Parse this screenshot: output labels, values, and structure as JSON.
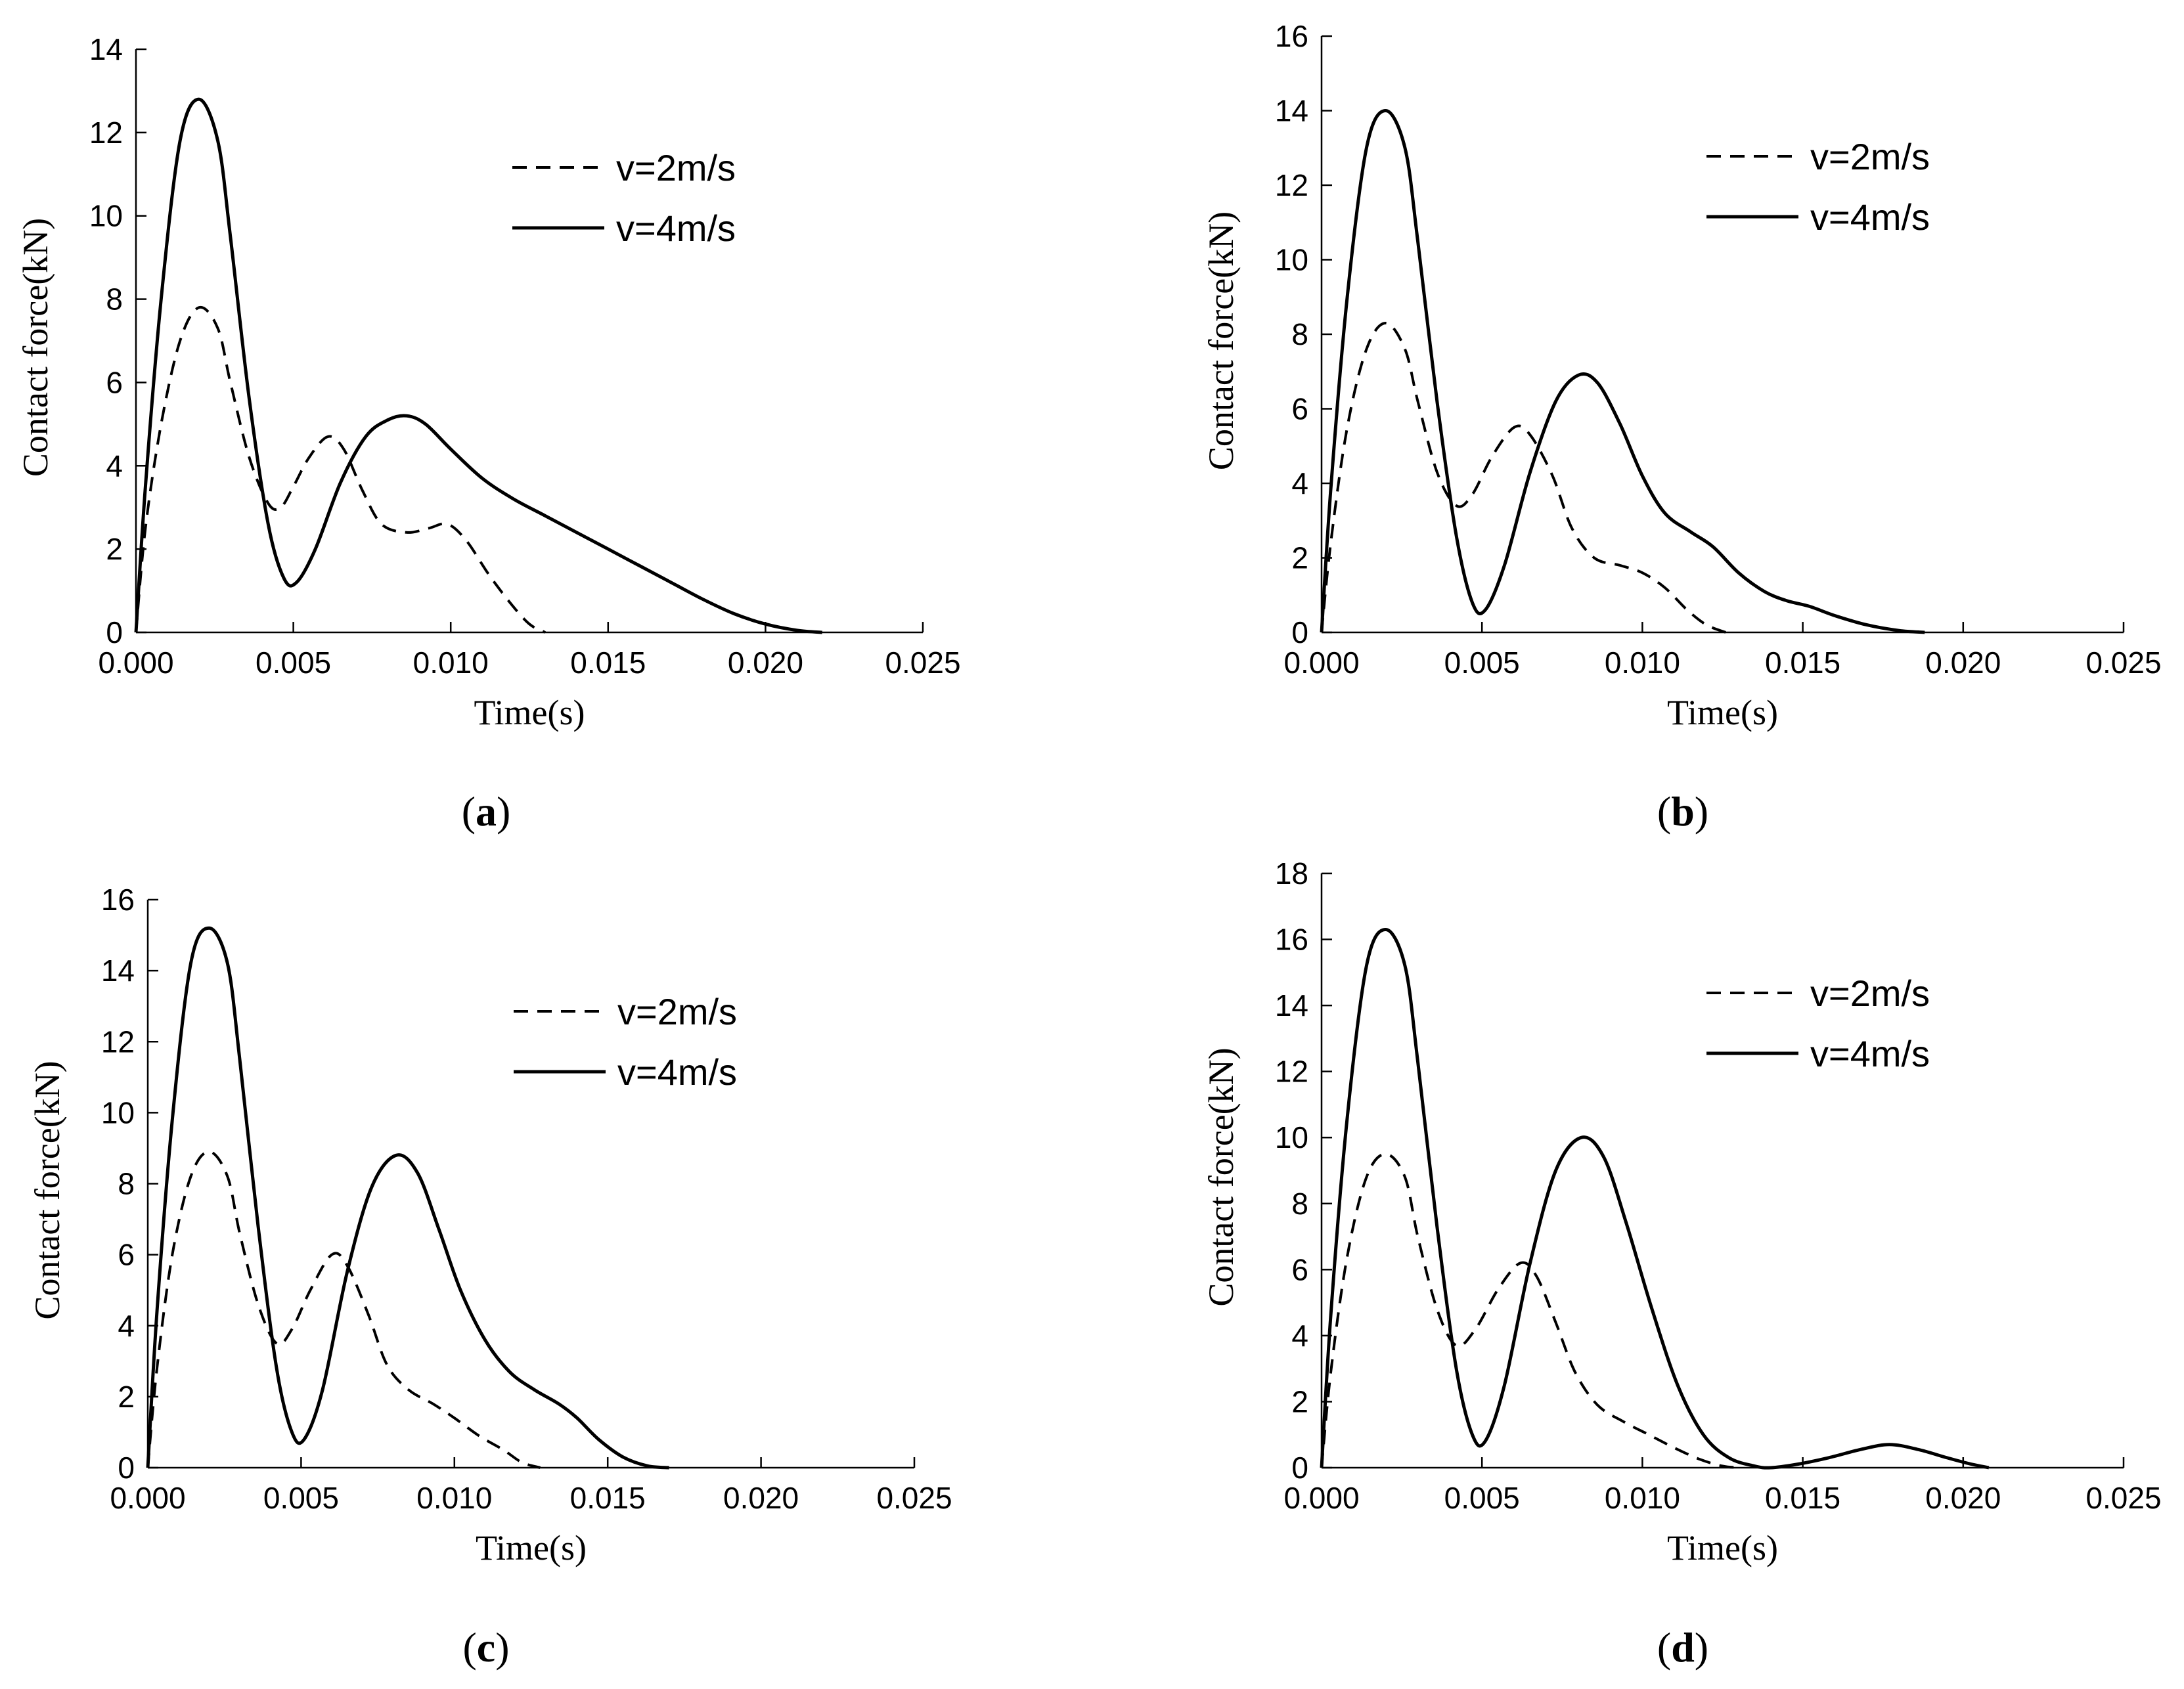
{
  "chart_data": [
    {
      "panel": "a",
      "type": "line",
      "xlabel": "Time(s)",
      "ylabel": "Contact force(kN)",
      "xlim": [
        0,
        0.025
      ],
      "ylim": [
        0,
        14
      ],
      "xticks": [
        0.0,
        0.005,
        0.01,
        0.015,
        0.02,
        0.025
      ],
      "xtick_labels": [
        "0.000",
        "0.005",
        "0.010",
        "0.015",
        "0.020",
        "0.025"
      ],
      "yticks": [
        0,
        2,
        4,
        6,
        8,
        10,
        12,
        14
      ],
      "ytick_labels": [
        "0",
        "2",
        "4",
        "6",
        "8",
        "10",
        "12",
        "14"
      ],
      "legend_position": "top-right",
      "series": [
        {
          "name": "v=2m/s",
          "style": "dashed",
          "points": [
            [
              0,
              0
            ],
            [
              0.0003,
              2.5
            ],
            [
              0.0008,
              5.0
            ],
            [
              0.0014,
              7.0
            ],
            [
              0.002,
              7.8
            ],
            [
              0.0026,
              7.3
            ],
            [
              0.003,
              6.0
            ],
            [
              0.0036,
              4.2
            ],
            [
              0.0042,
              3.1
            ],
            [
              0.0046,
              3.0
            ],
            [
              0.005,
              3.5
            ],
            [
              0.0055,
              4.2
            ],
            [
              0.0061,
              4.7
            ],
            [
              0.0066,
              4.4
            ],
            [
              0.0072,
              3.4
            ],
            [
              0.0078,
              2.6
            ],
            [
              0.0086,
              2.4
            ],
            [
              0.0093,
              2.5
            ],
            [
              0.0099,
              2.6
            ],
            [
              0.0105,
              2.2
            ],
            [
              0.0112,
              1.4
            ],
            [
              0.0119,
              0.7
            ],
            [
              0.0125,
              0.2
            ],
            [
              0.013,
              0.0
            ]
          ]
        },
        {
          "name": "v=4m/s",
          "style": "solid",
          "points": [
            [
              0,
              0
            ],
            [
              0.0003,
              3.5
            ],
            [
              0.0008,
              8.0
            ],
            [
              0.0014,
              11.8
            ],
            [
              0.002,
              12.8
            ],
            [
              0.0026,
              11.8
            ],
            [
              0.003,
              9.5
            ],
            [
              0.0036,
              5.6
            ],
            [
              0.0042,
              2.6
            ],
            [
              0.0047,
              1.3
            ],
            [
              0.0051,
              1.2
            ],
            [
              0.0057,
              2.0
            ],
            [
              0.0065,
              3.6
            ],
            [
              0.0073,
              4.7
            ],
            [
              0.008,
              5.1
            ],
            [
              0.0086,
              5.2
            ],
            [
              0.0092,
              5.0
            ],
            [
              0.01,
              4.4
            ],
            [
              0.011,
              3.7
            ],
            [
              0.012,
              3.2
            ],
            [
              0.013,
              2.8
            ],
            [
              0.014,
              2.4
            ],
            [
              0.015,
              2.0
            ],
            [
              0.016,
              1.6
            ],
            [
              0.017,
              1.2
            ],
            [
              0.018,
              0.8
            ],
            [
              0.019,
              0.45
            ],
            [
              0.02,
              0.2
            ],
            [
              0.021,
              0.05
            ],
            [
              0.0218,
              0.0
            ]
          ]
        }
      ]
    },
    {
      "panel": "b",
      "type": "line",
      "xlabel": "Time(s)",
      "ylabel": "Contact force(kN)",
      "xlim": [
        0,
        0.025
      ],
      "ylim": [
        0,
        16
      ],
      "xticks": [
        0.0,
        0.005,
        0.01,
        0.015,
        0.02,
        0.025
      ],
      "xtick_labels": [
        "0.000",
        "0.005",
        "0.010",
        "0.015",
        "0.020",
        "0.025"
      ],
      "yticks": [
        0,
        2,
        4,
        6,
        8,
        10,
        12,
        14,
        16
      ],
      "ytick_labels": [
        "0",
        "2",
        "4",
        "6",
        "8",
        "10",
        "12",
        "14",
        "16"
      ],
      "legend_position": "top-right",
      "series": [
        {
          "name": "v=2m/s",
          "style": "dashed",
          "points": [
            [
              0,
              0
            ],
            [
              0.0003,
              2.5
            ],
            [
              0.0008,
              5.5
            ],
            [
              0.0014,
              7.6
            ],
            [
              0.002,
              8.3
            ],
            [
              0.0026,
              7.6
            ],
            [
              0.003,
              6.2
            ],
            [
              0.0036,
              4.3
            ],
            [
              0.0042,
              3.4
            ],
            [
              0.0047,
              3.7
            ],
            [
              0.0053,
              4.7
            ],
            [
              0.006,
              5.5
            ],
            [
              0.0065,
              5.3
            ],
            [
              0.0072,
              4.2
            ],
            [
              0.0078,
              2.8
            ],
            [
              0.0085,
              2.0
            ],
            [
              0.0093,
              1.8
            ],
            [
              0.01,
              1.6
            ],
            [
              0.0107,
              1.2
            ],
            [
              0.0114,
              0.6
            ],
            [
              0.012,
              0.2
            ],
            [
              0.0126,
              0.0
            ]
          ]
        },
        {
          "name": "v=4m/s",
          "style": "solid",
          "points": [
            [
              0,
              0
            ],
            [
              0.0003,
              4.0
            ],
            [
              0.0008,
              9.0
            ],
            [
              0.0014,
              13.0
            ],
            [
              0.002,
              14.0
            ],
            [
              0.0026,
              13.0
            ],
            [
              0.003,
              10.5
            ],
            [
              0.0036,
              6.2
            ],
            [
              0.0042,
              2.6
            ],
            [
              0.0047,
              0.8
            ],
            [
              0.0051,
              0.6
            ],
            [
              0.0057,
              1.8
            ],
            [
              0.0065,
              4.3
            ],
            [
              0.0073,
              6.2
            ],
            [
              0.008,
              6.9
            ],
            [
              0.0086,
              6.7
            ],
            [
              0.0093,
              5.6
            ],
            [
              0.01,
              4.2
            ],
            [
              0.0107,
              3.2
            ],
            [
              0.0115,
              2.7
            ],
            [
              0.0122,
              2.3
            ],
            [
              0.013,
              1.6
            ],
            [
              0.0138,
              1.1
            ],
            [
              0.0145,
              0.85
            ],
            [
              0.0152,
              0.7
            ],
            [
              0.016,
              0.45
            ],
            [
              0.017,
              0.2
            ],
            [
              0.018,
              0.05
            ],
            [
              0.0188,
              0.0
            ]
          ]
        }
      ]
    },
    {
      "panel": "c",
      "type": "line",
      "xlabel": "Time(s)",
      "ylabel": "Contact force(kN)",
      "xlim": [
        0,
        0.025
      ],
      "ylim": [
        0,
        16
      ],
      "xticks": [
        0.0,
        0.005,
        0.01,
        0.015,
        0.02,
        0.025
      ],
      "xtick_labels": [
        "0.000",
        "0.005",
        "0.010",
        "0.015",
        "0.020",
        "0.025"
      ],
      "yticks": [
        0,
        2,
        4,
        6,
        8,
        10,
        12,
        14,
        16
      ],
      "ytick_labels": [
        "0",
        "2",
        "4",
        "6",
        "8",
        "10",
        "12",
        "14",
        "16"
      ],
      "legend_position": "top-right",
      "series": [
        {
          "name": "v=2m/s",
          "style": "dashed",
          "points": [
            [
              0,
              0
            ],
            [
              0.0003,
              2.8
            ],
            [
              0.0008,
              6.0
            ],
            [
              0.0014,
              8.2
            ],
            [
              0.002,
              8.9
            ],
            [
              0.0026,
              8.2
            ],
            [
              0.003,
              6.6
            ],
            [
              0.0036,
              4.6
            ],
            [
              0.0042,
              3.5
            ],
            [
              0.0047,
              3.9
            ],
            [
              0.0053,
              5.0
            ],
            [
              0.006,
              6.0
            ],
            [
              0.0065,
              5.7
            ],
            [
              0.0072,
              4.3
            ],
            [
              0.0078,
              2.9
            ],
            [
              0.0085,
              2.2
            ],
            [
              0.0093,
              1.8
            ],
            [
              0.01,
              1.4
            ],
            [
              0.0108,
              0.9
            ],
            [
              0.0116,
              0.5
            ],
            [
              0.0122,
              0.15
            ],
            [
              0.0128,
              0.0
            ]
          ]
        },
        {
          "name": "v=4m/s",
          "style": "solid",
          "points": [
            [
              0,
              0
            ],
            [
              0.0003,
              4.4
            ],
            [
              0.0008,
              9.8
            ],
            [
              0.0014,
              14.2
            ],
            [
              0.002,
              15.2
            ],
            [
              0.0026,
              14.2
            ],
            [
              0.003,
              11.5
            ],
            [
              0.0036,
              6.8
            ],
            [
              0.0042,
              2.8
            ],
            [
              0.0047,
              1.0
            ],
            [
              0.0051,
              0.8
            ],
            [
              0.0057,
              2.2
            ],
            [
              0.0065,
              5.5
            ],
            [
              0.0073,
              7.9
            ],
            [
              0.0081,
              8.8
            ],
            [
              0.0088,
              8.3
            ],
            [
              0.0095,
              6.7
            ],
            [
              0.0102,
              5.0
            ],
            [
              0.011,
              3.6
            ],
            [
              0.0118,
              2.7
            ],
            [
              0.0126,
              2.2
            ],
            [
              0.0134,
              1.8
            ],
            [
              0.014,
              1.4
            ],
            [
              0.0147,
              0.8
            ],
            [
              0.0155,
              0.3
            ],
            [
              0.0163,
              0.05
            ],
            [
              0.017,
              0.0
            ]
          ]
        }
      ]
    },
    {
      "panel": "d",
      "type": "line",
      "xlabel": "Time(s)",
      "ylabel": "Contact force(kN)",
      "xlim": [
        0,
        0.025
      ],
      "ylim": [
        0,
        18
      ],
      "xticks": [
        0.0,
        0.005,
        0.01,
        0.015,
        0.02,
        0.025
      ],
      "xtick_labels": [
        "0.000",
        "0.005",
        "0.010",
        "0.015",
        "0.020",
        "0.025"
      ],
      "yticks": [
        0,
        2,
        4,
        6,
        8,
        10,
        12,
        14,
        16,
        18
      ],
      "ytick_labels": [
        "0",
        "2",
        "4",
        "6",
        "8",
        "10",
        "12",
        "14",
        "16",
        "18"
      ],
      "legend_position": "top-right",
      "series": [
        {
          "name": "v=2m/s",
          "style": "dashed",
          "points": [
            [
              0,
              0
            ],
            [
              0.0003,
              3.0
            ],
            [
              0.0008,
              6.4
            ],
            [
              0.0014,
              8.8
            ],
            [
              0.002,
              9.5
            ],
            [
              0.0026,
              8.8
            ],
            [
              0.003,
              7.0
            ],
            [
              0.0036,
              4.8
            ],
            [
              0.0042,
              3.7
            ],
            [
              0.0048,
              4.2
            ],
            [
              0.0055,
              5.4
            ],
            [
              0.0062,
              6.2
            ],
            [
              0.0067,
              5.8
            ],
            [
              0.0073,
              4.4
            ],
            [
              0.0079,
              2.9
            ],
            [
              0.0086,
              1.9
            ],
            [
              0.0094,
              1.4
            ],
            [
              0.0102,
              1.0
            ],
            [
              0.011,
              0.6
            ],
            [
              0.0118,
              0.25
            ],
            [
              0.0125,
              0.05
            ],
            [
              0.013,
              0.0
            ]
          ]
        },
        {
          "name": "v=4m/s",
          "style": "solid",
          "points": [
            [
              0,
              0
            ],
            [
              0.0003,
              4.8
            ],
            [
              0.0008,
              10.6
            ],
            [
              0.0014,
              15.2
            ],
            [
              0.002,
              16.3
            ],
            [
              0.0026,
              15.2
            ],
            [
              0.003,
              12.3
            ],
            [
              0.0036,
              7.3
            ],
            [
              0.0042,
              3.0
            ],
            [
              0.0047,
              1.0
            ],
            [
              0.0051,
              0.8
            ],
            [
              0.0057,
              2.5
            ],
            [
              0.0065,
              6.2
            ],
            [
              0.0073,
              9.0
            ],
            [
              0.0081,
              10.0
            ],
            [
              0.0088,
              9.4
            ],
            [
              0.0095,
              7.4
            ],
            [
              0.0103,
              4.8
            ],
            [
              0.0111,
              2.5
            ],
            [
              0.0119,
              1.0
            ],
            [
              0.0127,
              0.3
            ],
            [
              0.0135,
              0.05
            ],
            [
              0.014,
              0.0
            ],
            [
              0.0148,
              0.1
            ],
            [
              0.0158,
              0.3
            ],
            [
              0.0168,
              0.55
            ],
            [
              0.0177,
              0.7
            ],
            [
              0.0186,
              0.55
            ],
            [
              0.0195,
              0.3
            ],
            [
              0.0202,
              0.12
            ],
            [
              0.0208,
              0.0
            ]
          ]
        }
      ]
    }
  ]
}
